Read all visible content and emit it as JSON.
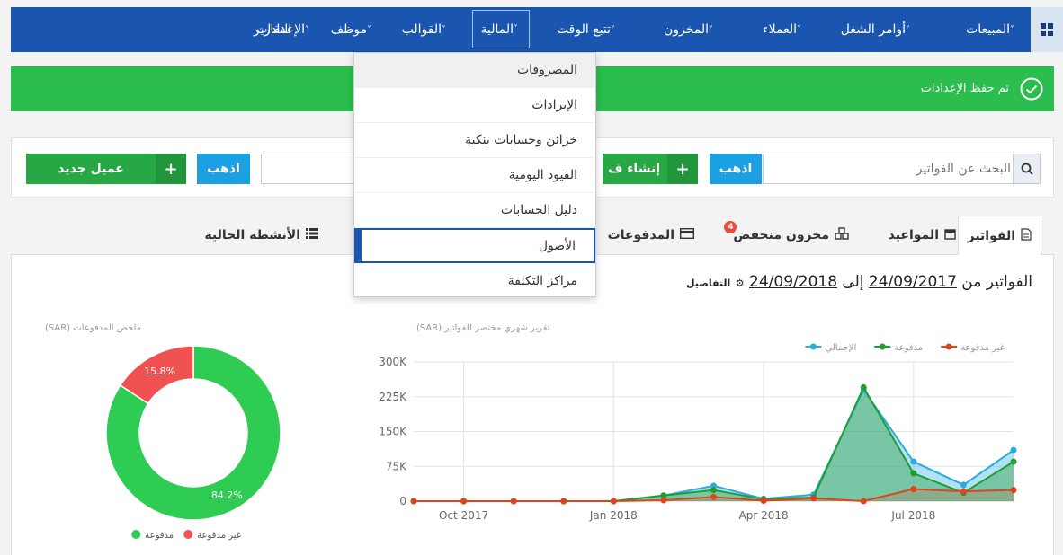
{
  "nav": {
    "items": [
      {
        "label": "المبيعات",
        "chev": "˅"
      },
      {
        "label": "أوامر الشغل",
        "chev": "˅"
      },
      {
        "label": "العملاء",
        "chev": "˅"
      },
      {
        "label": "المخزون",
        "chev": "˅"
      },
      {
        "label": "تتبع الوقت",
        "chev": "˅"
      },
      {
        "label": "المالية",
        "chev": "˅"
      },
      {
        "label": "القوالب",
        "chev": "˅"
      },
      {
        "label": "موظف",
        "chev": "˅"
      },
      {
        "label": "الإعدادات",
        "chev": "˅"
      },
      {
        "label": "التقارير",
        "chev": ""
      }
    ]
  },
  "alert": {
    "text": "تم حفظ الإعدادات"
  },
  "search": {
    "placeholder": "البحث عن الفواتير",
    "go": "اذهب",
    "go2": "اذهب"
  },
  "buttons": {
    "create": "إنشاء ف",
    "new_client": "عميل جديد",
    "plus": "+"
  },
  "finance_menu": [
    "المصروفات",
    "الإيرادات",
    "خزائن وحسابات بنكية",
    "القيود اليومية",
    "دليل الحسابات",
    "الأصول",
    "مراكز التكلفة"
  ],
  "tabs": {
    "invoices": "الفواتير",
    "appointments": "المواعيد",
    "low_stock": "مخزون منخفض",
    "low_stock_badge": "4",
    "payments": "المدفوعات",
    "activities": "الأنشطة الحالية"
  },
  "invoices_header": {
    "prefix": "الفواتير من",
    "from": "24/09/2017",
    "to_word": "إلى",
    "to": "24/09/2018",
    "details": "التفاصيل"
  },
  "chart_data": [
    {
      "type": "area",
      "title": "(SAR) تقرير شهري مختصر للفواتير",
      "x_ticks": [
        "Oct 2017",
        "Jan 2018",
        "Apr 2018",
        "Jul 2018"
      ],
      "y_ticks": [
        "300K",
        "225K",
        "150K",
        "75K",
        "0"
      ],
      "ylim": [
        0,
        300000
      ],
      "x": [
        "2017-09",
        "2017-10",
        "2017-11",
        "2017-12",
        "2018-01",
        "2018-02",
        "2018-03",
        "2018-04",
        "2018-05",
        "2018-06",
        "2018-07",
        "2018-08",
        "2018-09"
      ],
      "legend_position": "top-right",
      "series": [
        {
          "name": "الإجمالي",
          "color": "#29abe2",
          "values": [
            0,
            0,
            0,
            0,
            0,
            12000,
            33000,
            5000,
            14000,
            240000,
            85000,
            35000,
            110000
          ]
        },
        {
          "name": "مدفوعة",
          "color": "#1f9e2f",
          "values": [
            0,
            0,
            0,
            0,
            0,
            12000,
            24000,
            4000,
            8000,
            245000,
            60000,
            18000,
            85000
          ]
        },
        {
          "name": "غير مدفوعة",
          "color": "#e0441b",
          "values": [
            0,
            0,
            0,
            0,
            0,
            2000,
            9000,
            1000,
            6000,
            0,
            26000,
            21000,
            24000
          ]
        }
      ]
    },
    {
      "type": "pie",
      "title": "(SAR) ملخص المدفوعات",
      "slices": [
        {
          "name": "مدفوعة",
          "value": 84.2,
          "label": "84.2%",
          "color": "#2ecc52"
        },
        {
          "name": "غير مدفوعة",
          "value": 15.8,
          "label": "15.8%",
          "color": "#f05252"
        }
      ]
    }
  ]
}
